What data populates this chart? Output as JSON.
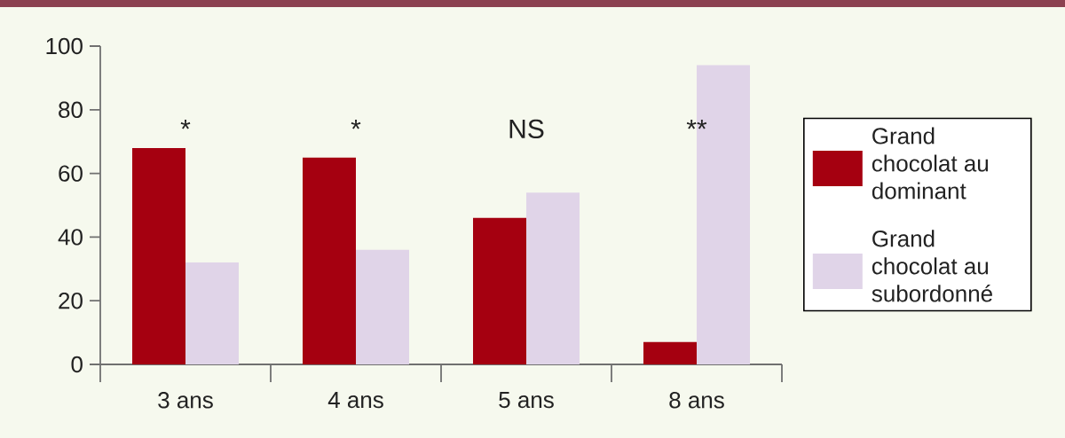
{
  "chart_data": {
    "type": "bar",
    "categories": [
      "3 ans",
      "4 ans",
      "5 ans",
      "8 ans"
    ],
    "series": [
      {
        "name": "Grand chocolat au dominant",
        "color": "#a50010",
        "values": [
          68,
          65,
          46,
          7
        ]
      },
      {
        "name": "Grand chocolat au subordonné",
        "color": "#e0d4e8",
        "values": [
          32,
          36,
          54,
          94
        ]
      }
    ],
    "ylim": [
      0,
      100
    ],
    "yticks": [
      0,
      20,
      40,
      60,
      80,
      100
    ],
    "grid": false,
    "legend": "right",
    "annotations": [
      "*",
      "*",
      "NS",
      "**"
    ]
  }
}
